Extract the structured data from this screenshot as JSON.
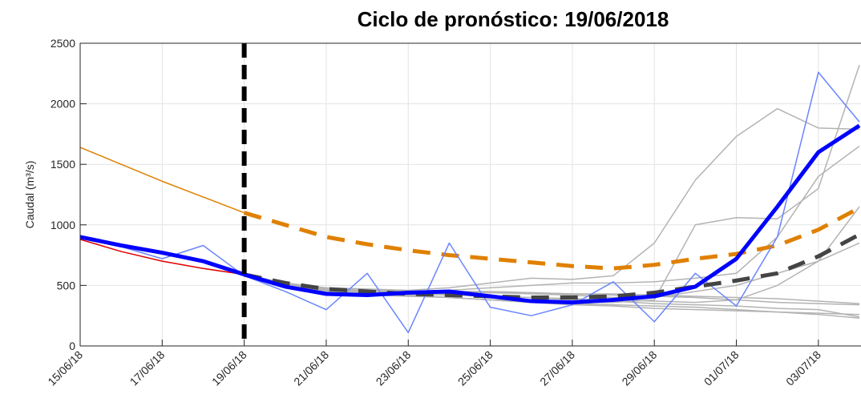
{
  "chart_data": {
    "type": "line",
    "title": "Ciclo de pronóstico: 19/06/2018",
    "y_label": "Caudal (m³/s)",
    "x": [
      "15/06/18",
      "16/06/18",
      "17/06/18",
      "18/06/18",
      "19/06/18",
      "20/06/18",
      "21/06/18",
      "22/06/18",
      "23/06/18",
      "24/06/18",
      "25/06/18",
      "26/06/18",
      "27/06/18",
      "28/06/18",
      "29/06/18",
      "30/06/18",
      "01/07/18",
      "02/07/18",
      "03/07/18",
      "04/07/18"
    ],
    "xlim": [
      "15/06/18",
      "04/07/18"
    ],
    "xticks": [
      "15/06/18",
      "17/06/18",
      "19/06/18",
      "21/06/18",
      "23/06/18",
      "25/06/18",
      "27/06/18",
      "29/06/18",
      "01/07/18",
      "03/07/18"
    ],
    "ylim": [
      0,
      2500
    ],
    "yticks": [
      0,
      500,
      1000,
      1500,
      2000,
      2500
    ],
    "grid": true,
    "forecast_date": "19/06/18",
    "series": [
      {
        "color": "#b3b3b3",
        "line_style": "thin",
        "values": [
          null,
          null,
          null,
          null,
          590,
          510,
          460,
          460,
          450,
          450,
          440,
          440,
          430,
          430,
          420,
          410,
          400,
          390,
          370,
          350
        ]
      },
      {
        "color": "#b3b3b3",
        "line_style": "thin",
        "values": [
          null,
          null,
          null,
          null,
          590,
          520,
          480,
          470,
          460,
          480,
          520,
          560,
          550,
          580,
          850,
          1370,
          1730,
          1960,
          1800,
          1790
        ]
      },
      {
        "color": "#b3b3b3",
        "line_style": "thin",
        "values": [
          null,
          null,
          null,
          null,
          590,
          500,
          450,
          430,
          420,
          400,
          380,
          370,
          360,
          360,
          380,
          1000,
          1060,
          1050,
          1300,
          2320
        ]
      },
      {
        "color": "#b3b3b3",
        "line_style": "thin",
        "values": [
          null,
          null,
          null,
          null,
          590,
          520,
          470,
          460,
          450,
          460,
          480,
          500,
          520,
          520,
          530,
          560,
          600,
          900,
          1400,
          1650
        ]
      },
      {
        "color": "#b3b3b3",
        "line_style": "thin",
        "values": [
          null,
          null,
          null,
          null,
          590,
          490,
          440,
          420,
          410,
          400,
          380,
          360,
          340,
          330,
          310,
          300,
          290,
          280,
          270,
          260
        ]
      },
      {
        "color": "#b3b3b3",
        "line_style": "thin",
        "values": [
          null,
          null,
          null,
          null,
          590,
          500,
          450,
          440,
          430,
          420,
          410,
          400,
          380,
          370,
          350,
          340,
          330,
          310,
          300,
          240
        ]
      },
      {
        "color": "#b3b3b3",
        "line_style": "thin",
        "values": [
          null,
          null,
          null,
          null,
          590,
          510,
          470,
          450,
          440,
          430,
          410,
          400,
          390,
          380,
          370,
          360,
          380,
          500,
          700,
          1150
        ]
      },
      {
        "color": "#b3b3b3",
        "line_style": "thin",
        "values": [
          null,
          null,
          null,
          null,
          590,
          500,
          460,
          450,
          440,
          450,
          450,
          440,
          430,
          420,
          410,
          400,
          380,
          360,
          350,
          340
        ]
      },
      {
        "color": "#b3b3b3",
        "line_style": "thin",
        "values": [
          null,
          null,
          null,
          null,
          590,
          510,
          470,
          460,
          450,
          440,
          440,
          430,
          420,
          400,
          400,
          450,
          500,
          600,
          700,
          850
        ]
      },
      {
        "color": "#b3b3b3",
        "line_style": "thin",
        "values": [
          null,
          null,
          null,
          null,
          590,
          500,
          450,
          430,
          420,
          400,
          380,
          360,
          350,
          340,
          330,
          320,
          300,
          280,
          260,
          230
        ]
      },
      {
        "color": "#e00000",
        "line_style": "thin",
        "values": [
          880,
          780,
          700,
          640,
          590,
          null,
          null,
          null,
          null,
          null,
          null,
          null,
          null,
          null,
          null,
          null,
          null,
          null,
          null,
          null
        ]
      },
      {
        "color": "#e08000",
        "line_style": "thin",
        "values": [
          1640,
          1500,
          1360,
          1230,
          1100,
          null,
          null,
          null,
          null,
          null,
          null,
          null,
          null,
          null,
          null,
          null,
          null,
          null,
          null,
          null
        ]
      },
      {
        "color": "#e08000",
        "line_style": "dashed",
        "values": [
          null,
          null,
          null,
          null,
          1100,
          1000,
          900,
          840,
          790,
          750,
          720,
          690,
          660,
          640,
          670,
          720,
          760,
          830,
          960,
          1140
        ]
      },
      {
        "color": "#6a85ff",
        "line_style": "thin",
        "values": [
          890,
          820,
          720,
          830,
          580,
          450,
          300,
          600,
          110,
          850,
          320,
          250,
          340,
          530,
          200,
          600,
          330,
          900,
          2260,
          1850
        ]
      },
      {
        "color": "#444444",
        "line_style": "dashed",
        "values": [
          null,
          null,
          null,
          null,
          590,
          520,
          470,
          450,
          430,
          420,
          410,
          400,
          400,
          410,
          440,
          490,
          540,
          600,
          740,
          920
        ]
      },
      {
        "color": "#0000ff",
        "line_style": "bold",
        "values": [
          900,
          830,
          770,
          700,
          590,
          490,
          430,
          420,
          440,
          450,
          410,
          370,
          360,
          380,
          410,
          490,
          720,
          1150,
          1600,
          1820
        ]
      }
    ]
  }
}
